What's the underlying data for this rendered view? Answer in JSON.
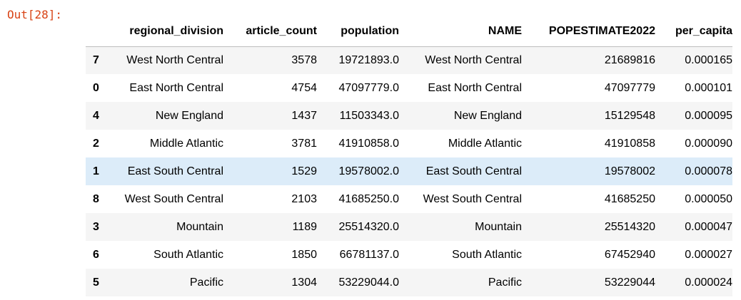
{
  "cell": {
    "prompt": "Out[28]:"
  },
  "table": {
    "columns": [
      "",
      "regional_division",
      "article_count",
      "population",
      "NAME",
      "POPESTIMATE2022",
      "per_capita"
    ],
    "rows": [
      {
        "index": "7",
        "regional_division": "West North Central",
        "article_count": "3578",
        "population": "19721893.0",
        "NAME": "West North Central",
        "POPESTIMATE2022": "21689816",
        "per_capita": "0.000165"
      },
      {
        "index": "0",
        "regional_division": "East North Central",
        "article_count": "4754",
        "population": "47097779.0",
        "NAME": "East North Central",
        "POPESTIMATE2022": "47097779",
        "per_capita": "0.000101"
      },
      {
        "index": "4",
        "regional_division": "New England",
        "article_count": "1437",
        "population": "11503343.0",
        "NAME": "New England",
        "POPESTIMATE2022": "15129548",
        "per_capita": "0.000095"
      },
      {
        "index": "2",
        "regional_division": "Middle Atlantic",
        "article_count": "3781",
        "population": "41910858.0",
        "NAME": "Middle Atlantic",
        "POPESTIMATE2022": "41910858",
        "per_capita": "0.000090"
      },
      {
        "index": "1",
        "regional_division": "East South Central",
        "article_count": "1529",
        "population": "19578002.0",
        "NAME": "East South Central",
        "POPESTIMATE2022": "19578002",
        "per_capita": "0.000078"
      },
      {
        "index": "8",
        "regional_division": "West South Central",
        "article_count": "2103",
        "population": "41685250.0",
        "NAME": "West South Central",
        "POPESTIMATE2022": "41685250",
        "per_capita": "0.000050"
      },
      {
        "index": "3",
        "regional_division": "Mountain",
        "article_count": "1189",
        "population": "25514320.0",
        "NAME": "Mountain",
        "POPESTIMATE2022": "25514320",
        "per_capita": "0.000047"
      },
      {
        "index": "6",
        "regional_division": "South Atlantic",
        "article_count": "1850",
        "population": "66781137.0",
        "NAME": "South Atlantic",
        "POPESTIMATE2022": "67452940",
        "per_capita": "0.000027"
      },
      {
        "index": "5",
        "regional_division": "Pacific",
        "article_count": "1304",
        "population": "53229044.0",
        "NAME": "Pacific",
        "POPESTIMATE2022": "53229044",
        "per_capita": "0.000024"
      }
    ],
    "hovered_row_index": "1"
  },
  "colors": {
    "prompt": "#d84315",
    "odd_row": "#f5f5f5",
    "hover_row": "#dcecf9"
  }
}
